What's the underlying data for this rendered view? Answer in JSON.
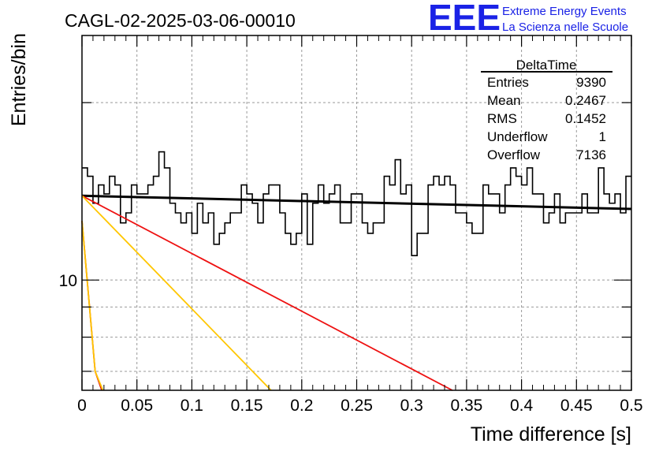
{
  "title": "CAGL-02-2025-03-06-00010",
  "logo": {
    "text": "EEE",
    "line1": "Extreme Energy Events",
    "line2": "La Scienza nelle Scuole",
    "color": "#1a22e6"
  },
  "stats": {
    "name": "DeltaTime",
    "rows": [
      {
        "label": "Entries",
        "value": "9390"
      },
      {
        "label": "Mean",
        "value": "0.2467"
      },
      {
        "label": "RMS",
        "value": "0.1452"
      },
      {
        "label": "Underflow",
        "value": "1"
      },
      {
        "label": "Overflow",
        "value": "7136"
      }
    ]
  },
  "chart_data": {
    "type": "line",
    "title": "CAGL-02-2025-03-06-00010",
    "xlabel": "Time difference [s]",
    "ylabel": "Entries/bin",
    "xlim": [
      0,
      0.5
    ],
    "ylim": [
      6.5,
      26
    ],
    "yscale": "log",
    "grid": true,
    "x_ticks": [
      0,
      0.05,
      0.1,
      0.15,
      0.2,
      0.25,
      0.3,
      0.35,
      0.4,
      0.45,
      0.5
    ],
    "x_tick_labels": [
      "0",
      "0.05",
      "0.1",
      "0.15",
      "0.2",
      "0.25",
      "0.3",
      "0.35",
      "0.4",
      "0.45",
      "0.5"
    ],
    "y_tick_labels": [
      {
        "value": 10,
        "label": "10"
      }
    ],
    "histogram": {
      "bin_width": 0.005,
      "values": [
        15.5,
        15.0,
        13.5,
        14.5,
        14.0,
        15.0,
        14.5,
        12.5,
        13.0,
        14.5,
        14.0,
        14.0,
        14.5,
        15.0,
        16.5,
        15.5,
        13.5,
        13.0,
        12.5,
        13.0,
        12.0,
        13.5,
        12.5,
        13.0,
        11.5,
        12.0,
        12.5,
        13.0,
        13.0,
        14.5,
        14.0,
        13.5,
        12.5,
        14.0,
        14.5,
        14.5,
        13.0,
        12.0,
        11.5,
        12.0,
        14.0,
        11.5,
        13.5,
        14.5,
        13.5,
        14.0,
        14.5,
        12.5,
        12.5,
        14.0,
        14.0,
        12.5,
        12.0,
        12.5,
        12.5,
        15.0,
        14.5,
        16.0,
        14.0,
        14.5,
        11.0,
        12.0,
        12.0,
        14.5,
        15.0,
        14.5,
        15.0,
        14.5,
        13.0,
        13.0,
        12.5,
        12.0,
        12.0,
        14.5,
        14.0,
        14.0,
        13.0,
        14.5,
        15.5,
        15.0,
        14.5,
        15.5,
        14.0,
        14.0,
        12.5,
        13.0,
        14.0,
        12.5,
        13.0,
        13.0,
        13.0,
        14.0,
        13.0,
        13.0,
        15.5,
        14.0,
        13.5,
        14.0,
        13.0,
        15.0
      ]
    },
    "series": [
      {
        "type": "line",
        "color": "#000000",
        "points": [
          [
            0.0,
            13.9
          ],
          [
            0.5,
            13.2
          ]
        ]
      },
      {
        "type": "line",
        "color": "#ee1111",
        "points": [
          [
            0.0,
            13.9
          ],
          [
            0.337,
            6.5
          ]
        ]
      },
      {
        "type": "line",
        "color": "#ffc600",
        "points": [
          [
            0.0,
            13.9
          ],
          [
            0.172,
            6.5
          ]
        ]
      },
      {
        "type": "line",
        "color": "#dd1111",
        "points": [
          [
            0.0,
            12.6
          ],
          [
            0.012,
            7.0
          ],
          [
            0.018,
            6.5
          ]
        ]
      },
      {
        "type": "line",
        "color": "#ffc600",
        "points": [
          [
            0.0,
            12.6
          ],
          [
            0.012,
            7.0
          ],
          [
            0.019,
            6.5
          ]
        ]
      }
    ]
  }
}
